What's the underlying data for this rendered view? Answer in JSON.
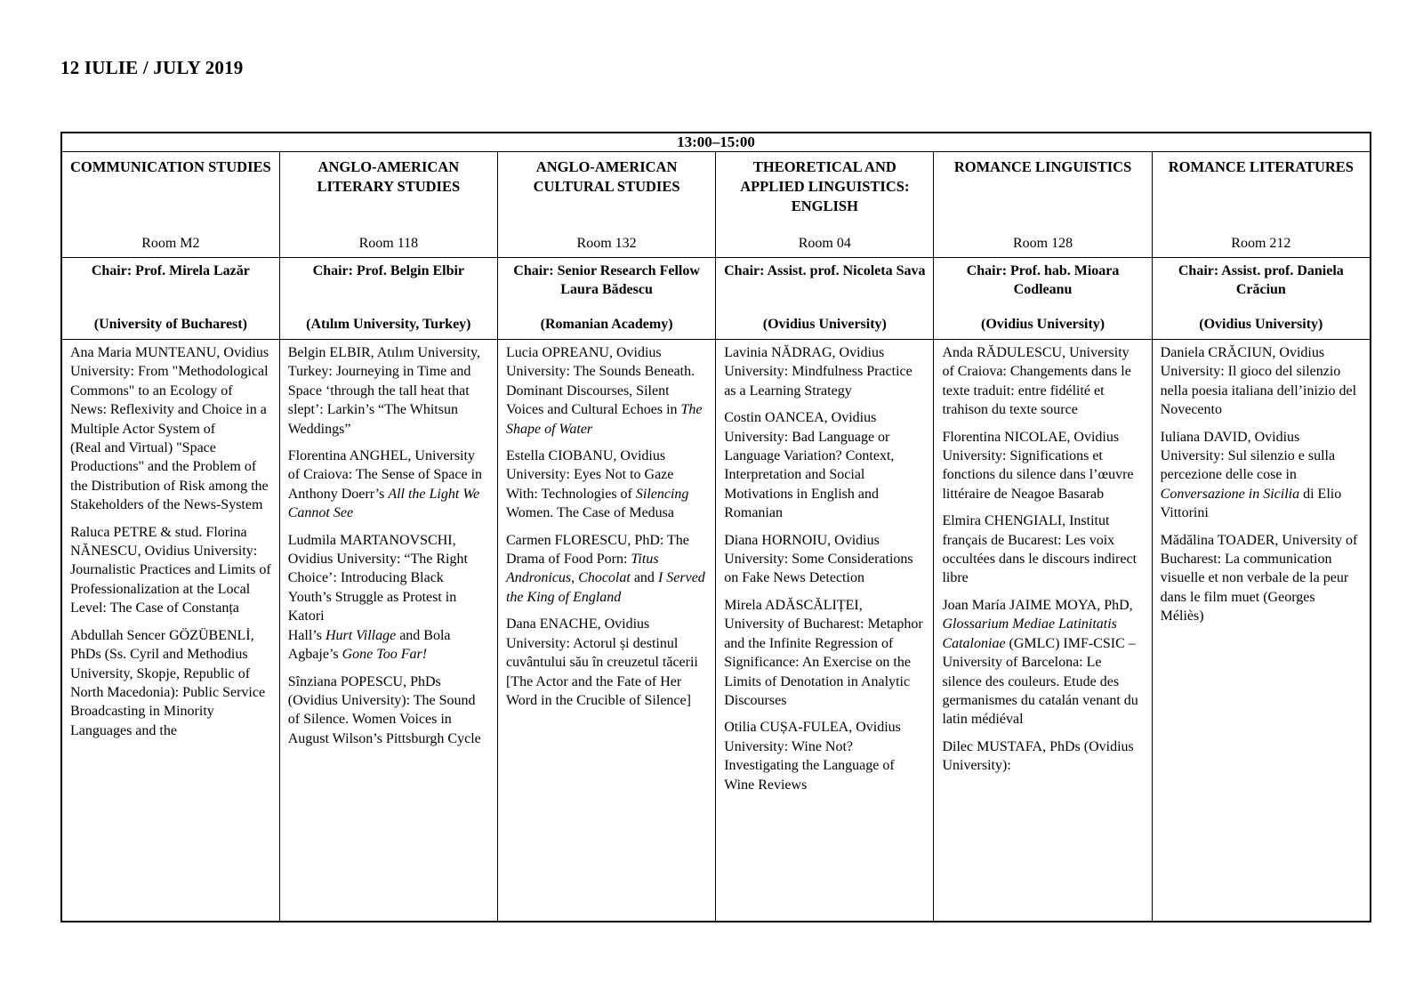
{
  "page_title": "12 IULIE / JULY 2019",
  "schedule": {
    "time_slot": "13:00–15:00",
    "columns": [
      {
        "section": "COMMUNICATION STUDIES",
        "room": "Room M2",
        "chair": "Chair: Prof. Mirela Lazăr",
        "chair_affiliation": "(University of Bucharest)",
        "papers": [
          [
            {
              "t": "Ana Maria MUNTEANU, Ovidius University: From \"Methodological Commons\" to an Ecology of News: Reflexivity and Choice in a Multiple Actor System of\n(Real and Virtual) \"Space Productions\" and the Problem of the Distribution of Risk among the Stakeholders of the News-System",
              "i": false
            }
          ],
          [
            {
              "t": "Raluca PETRE & stud. Florina NĂNESCU, Ovidius University: Journalistic Practices and Limits of Professionalization at the Local Level: The Case of Constanța",
              "i": false
            }
          ],
          [
            {
              "t": "Abdullah Sencer GÖZÜBENLİ, PhDs (Ss. Cyril and Methodius University, Skopje, Republic of North Macedonia): Public Service Broadcasting in Minority Languages and the",
              "i": false
            }
          ]
        ]
      },
      {
        "section": "ANGLO-AMERICAN LITERARY STUDIES",
        "room": "Room 118",
        "chair": "Chair: Prof. Belgin Elbir",
        "chair_affiliation": "(Atılım University, Turkey)",
        "papers": [
          [
            {
              "t": "Belgin ELBIR, Atılım University, Turkey: Journeying in Time and Space ‘through the tall heat that slept’: Larkin’s “The Whitsun Weddings”",
              "i": false
            }
          ],
          [
            {
              "t": "Florentina ANGHEL, University of Craiova: The Sense of Space in Anthony Doerr’s ",
              "i": false
            },
            {
              "t": "All the Light We Cannot See",
              "i": true
            }
          ],
          [
            {
              "t": "Ludmila MARTANOVSCHI, Ovidius University: “The Right Choice’: Introducing Black Youth’s Struggle as Protest in Katori\nHall’s ",
              "i": false
            },
            {
              "t": "Hurt Village",
              "i": true
            },
            {
              "t": " and Bola Agbaje’s ",
              "i": false
            },
            {
              "t": "Gone Too Far!",
              "i": true
            }
          ],
          [
            {
              "t": "Sînziana POPESCU, PhDs (Ovidius University): The Sound of Silence. Women Voices in August Wilson’s Pittsburgh Cycle",
              "i": false
            }
          ]
        ]
      },
      {
        "section": "ANGLO-AMERICAN CULTURAL STUDIES",
        "room": "Room 132",
        "chair": "Chair: Senior Research Fellow Laura Bădescu",
        "chair_affiliation": "(Romanian Academy)",
        "papers": [
          [
            {
              "t": "Lucia OPREANU, Ovidius University: The Sounds Beneath. Dominant Discourses, Silent Voices and Cultural Echoes in ",
              "i": false
            },
            {
              "t": "The Shape of Water",
              "i": true
            }
          ],
          [
            {
              "t": "Estella CIOBANU, Ovidius University: Eyes Not to Gaze With: Technologies of ",
              "i": false
            },
            {
              "t": "Silencing",
              "i": true
            },
            {
              "t": " Women. The Case of Medusa",
              "i": false
            }
          ],
          [
            {
              "t": "Carmen FLORESCU, PhD: The Drama of Food Porn: ",
              "i": false
            },
            {
              "t": "Titus Andronicus",
              "i": true
            },
            {
              "t": ", ",
              "i": false
            },
            {
              "t": "Chocolat",
              "i": true
            },
            {
              "t": " and ",
              "i": false
            },
            {
              "t": "I Served the King of England",
              "i": true
            }
          ],
          [
            {
              "t": "Dana ENACHE, Ovidius University: Actorul și destinul cuvântului său în creuzetul tăcerii [The Actor and the Fate of Her Word in the Crucible of Silence]",
              "i": false
            }
          ]
        ]
      },
      {
        "section": "THEORETICAL AND APPLIED LINGUISTICS: ENGLISH",
        "room": "Room 04",
        "chair": "Chair: Assist. prof. Nicoleta Sava",
        "chair_affiliation": "(Ovidius University)",
        "papers": [
          [
            {
              "t": "Lavinia NĂDRAG, Ovidius University: Mindfulness Practice as a Learning Strategy",
              "i": false
            }
          ],
          [
            {
              "t": "Costin OANCEA, Ovidius University: Bad Language or Language Variation? Context, Interpretation and Social Motivations in English and Romanian",
              "i": false
            }
          ],
          [
            {
              "t": "Diana HORNOIU, Ovidius University: Some Considerations on Fake News Detection",
              "i": false
            }
          ],
          [
            {
              "t": "Mirela ADĂSCĂLIȚEI, University of Bucharest: Metaphor and the Infinite Regression of Significance: An Exercise on the Limits of Denotation in Analytic Discourses",
              "i": false
            }
          ],
          [
            {
              "t": "Otilia CUȘA-FULEA, Ovidius University: Wine Not? Investigating the Language of Wine Reviews",
              "i": false
            }
          ]
        ]
      },
      {
        "section": "ROMANCE LINGUISTICS",
        "room": "Room 128",
        "chair": "Chair: Prof. hab. Mioara Codleanu",
        "chair_affiliation": "(Ovidius University)",
        "papers": [
          [
            {
              "t": "Anda RĂDULESCU, University of Craiova: Changements dans le texte traduit: entre fidélité et trahison du texte source",
              "i": false
            }
          ],
          [
            {
              "t": "Florentina NICOLAE, Ovidius University: Significations et fonctions du silence dans l’œuvre littéraire de Neagoe Basarab",
              "i": false
            }
          ],
          [
            {
              "t": "Elmira CHENGIALI, Institut français de Bucarest: Les voix occultées dans le discours indirect libre",
              "i": false
            }
          ],
          [
            {
              "t": "Joan María JAIME MOYA, PhD, ",
              "i": false
            },
            {
              "t": "Glossarium Mediae Latinitatis Cataloniae",
              "i": true
            },
            {
              "t": " (GMLC) IMF-CSIC – University of Barcelona: Le silence des couleurs. Etude des germanismes du catalán venant du latin médiéval",
              "i": false
            }
          ],
          [
            {
              "t": "Dilec MUSTAFA, PhDs (Ovidius University):",
              "i": false
            }
          ]
        ]
      },
      {
        "section": "ROMANCE LITERATURES",
        "room": "Room 212",
        "chair": "Chair: Assist. prof. Daniela Crăciun",
        "chair_affiliation": "(Ovidius University)",
        "papers": [
          [
            {
              "t": "Daniela CRĂCIUN, Ovidius University: Il gioco del silenzio nella poesia italiana dell’inizio del Novecento",
              "i": false
            }
          ],
          [
            {
              "t": "Iuliana DAVID, Ovidius University: Sul silenzio e sulla percezione delle cose in ",
              "i": false
            },
            {
              "t": "Conversazione in Sicilia",
              "i": true
            },
            {
              "t": " di Elio Vittorini",
              "i": false
            }
          ],
          [
            {
              "t": "Mădălina TOADER, University of Bucharest: La communication visuelle et non verbale de la peur dans le film muet (Georges Méliès)",
              "i": false
            }
          ]
        ]
      }
    ]
  }
}
